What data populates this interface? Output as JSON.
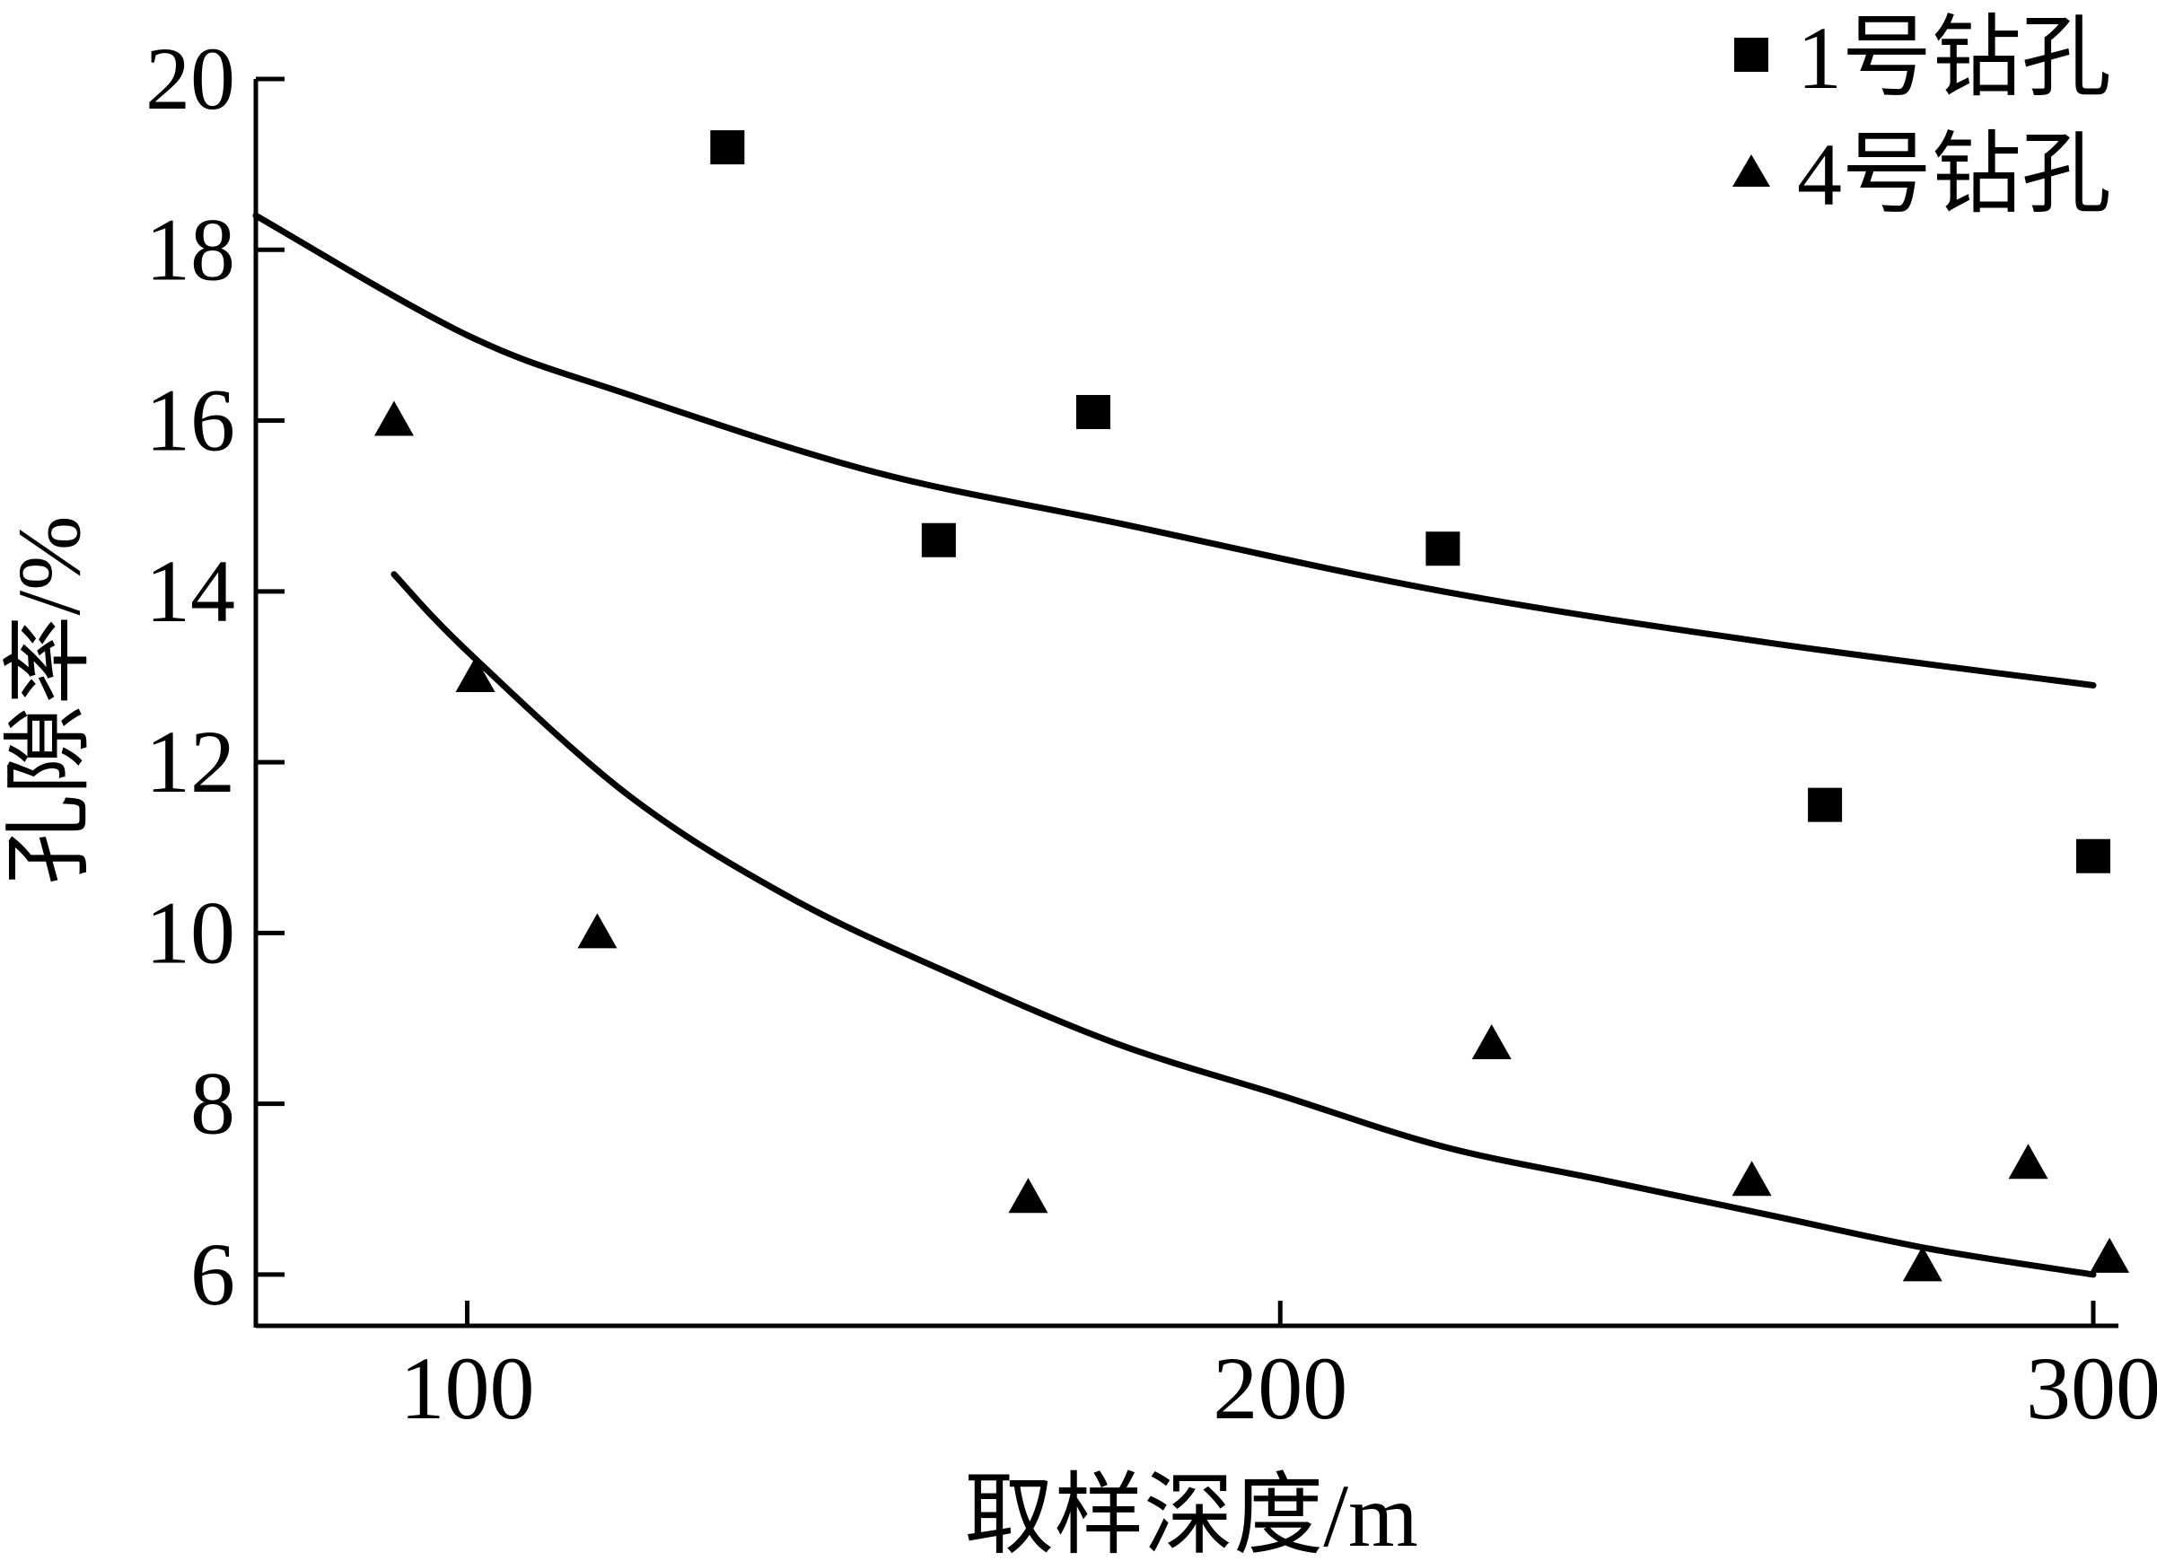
{
  "chart_data": {
    "type": "scatter",
    "xlabel": "取样深度/m",
    "ylabel": "孔隙率/%",
    "xlim": [
      74,
      300
    ],
    "ylim": [
      5.4,
      20
    ],
    "xticks": [
      "100",
      "200",
      "300"
    ],
    "yticks": [
      "20",
      "18",
      "16",
      "14",
      "12",
      "10",
      "8",
      "6"
    ],
    "legend_position": "top-right",
    "series": [
      {
        "name": "1号钻孔",
        "marker": "square",
        "points": [
          {
            "x": 132,
            "y": 19.2
          },
          {
            "x": 158,
            "y": 14.6
          },
          {
            "x": 177,
            "y": 16.1
          },
          {
            "x": 220,
            "y": 14.5
          },
          {
            "x": 267,
            "y": 11.5
          },
          {
            "x": 300,
            "y": 10.9
          }
        ],
        "fit": [
          {
            "x": 74,
            "y": 18.4
          },
          {
            "x": 100,
            "y": 17.0
          },
          {
            "x": 120,
            "y": 16.3
          },
          {
            "x": 150,
            "y": 15.4
          },
          {
            "x": 180,
            "y": 14.8
          },
          {
            "x": 220,
            "y": 14.0
          },
          {
            "x": 260,
            "y": 13.4
          },
          {
            "x": 300,
            "y": 12.9
          }
        ]
      },
      {
        "name": "4号钻孔",
        "marker": "triangle",
        "points": [
          {
            "x": 91,
            "y": 16.0
          },
          {
            "x": 101,
            "y": 13.0
          },
          {
            "x": 116,
            "y": 10.0
          },
          {
            "x": 169,
            "y": 6.9
          },
          {
            "x": 226,
            "y": 8.7
          },
          {
            "x": 258,
            "y": 7.1
          },
          {
            "x": 279,
            "y": 6.1
          },
          {
            "x": 292,
            "y": 7.3
          },
          {
            "x": 302,
            "y": 6.2
          }
        ],
        "fit": [
          {
            "x": 91,
            "y": 14.2
          },
          {
            "x": 100,
            "y": 13.3
          },
          {
            "x": 120,
            "y": 11.6
          },
          {
            "x": 140,
            "y": 10.4
          },
          {
            "x": 160,
            "y": 9.5
          },
          {
            "x": 180,
            "y": 8.7
          },
          {
            "x": 200,
            "y": 8.1
          },
          {
            "x": 220,
            "y": 7.5
          },
          {
            "x": 240,
            "y": 7.1
          },
          {
            "x": 260,
            "y": 6.7
          },
          {
            "x": 280,
            "y": 6.3
          },
          {
            "x": 300,
            "y": 6.0
          }
        ]
      }
    ]
  }
}
